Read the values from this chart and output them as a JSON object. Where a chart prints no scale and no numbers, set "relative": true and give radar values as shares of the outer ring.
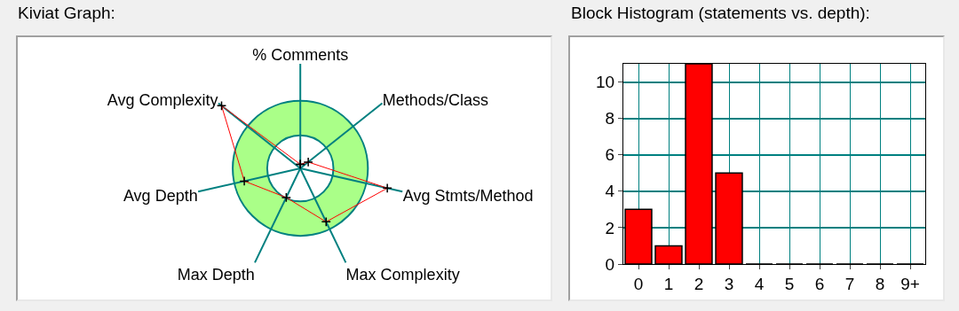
{
  "chart_data": [
    {
      "type": "radar",
      "title": "Kiviat Graph:",
      "relative": true,
      "categories": [
        "% Comments",
        "Methods/Class",
        "Avg Stmts/Method",
        "Max Complexity",
        "Max Depth",
        "Avg Depth",
        "Avg Complexity"
      ],
      "series": [
        {
          "color": "#ff0000",
          "values": [
            0.06,
            0.15,
            1.32,
            0.88,
            0.48,
            0.85,
            1.49
          ]
        }
      ],
      "marker": "cross",
      "grid": "x"
    },
    {
      "type": "bar",
      "title": "Block Histogram (statements vs. depth):",
      "categories": [
        "0",
        "1",
        "2",
        "3",
        "4",
        "5",
        "6",
        "7",
        "8",
        "9+"
      ],
      "values": [
        3,
        1,
        11,
        5,
        0,
        0,
        0,
        0,
        0,
        0
      ],
      "color": "#ff0000",
      "ylim": [
        0,
        11
      ],
      "yticks": [
        0,
        2,
        4,
        6,
        8,
        10
      ],
      "grid": true
    }
  ]
}
